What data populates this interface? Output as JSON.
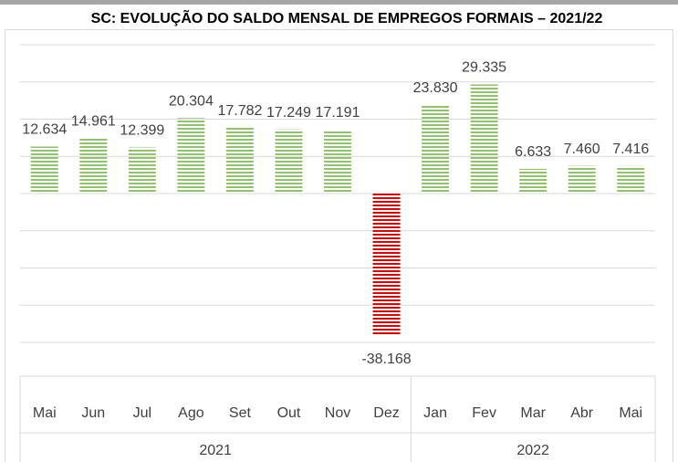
{
  "chart_data": {
    "type": "bar",
    "title": "SC: EVOLUÇÃO DO SALDO MENSAL DE EMPREGOS FORMAIS – 2021/22",
    "groups": [
      {
        "name": "2021",
        "categories": [
          "Mai",
          "Jun",
          "Jul",
          "Ago",
          "Set",
          "Out",
          "Nov",
          "Dez"
        ]
      },
      {
        "name": "2022",
        "categories": [
          "Jan",
          "Fev",
          "Mar",
          "Abr",
          "Mai"
        ]
      }
    ],
    "values": [
      12634,
      14961,
      12399,
      20304,
      17782,
      17249,
      17191,
      -38168,
      23830,
      29335,
      6633,
      7460,
      7416
    ],
    "value_labels": [
      "12.634",
      "14.961",
      "12.399",
      "20.304",
      "17.782",
      "17.249",
      "17.191",
      "-38.168",
      "23.830",
      "29.335",
      "6.633",
      "7.460",
      "7.416"
    ],
    "color": "#8fc46a",
    "negative_color": "#e00000",
    "ylim": [
      -40000,
      40000
    ],
    "yticks": [
      -40000,
      -30000,
      -20000,
      -10000,
      0,
      10000,
      20000,
      30000,
      40000
    ],
    "grid": true
  }
}
